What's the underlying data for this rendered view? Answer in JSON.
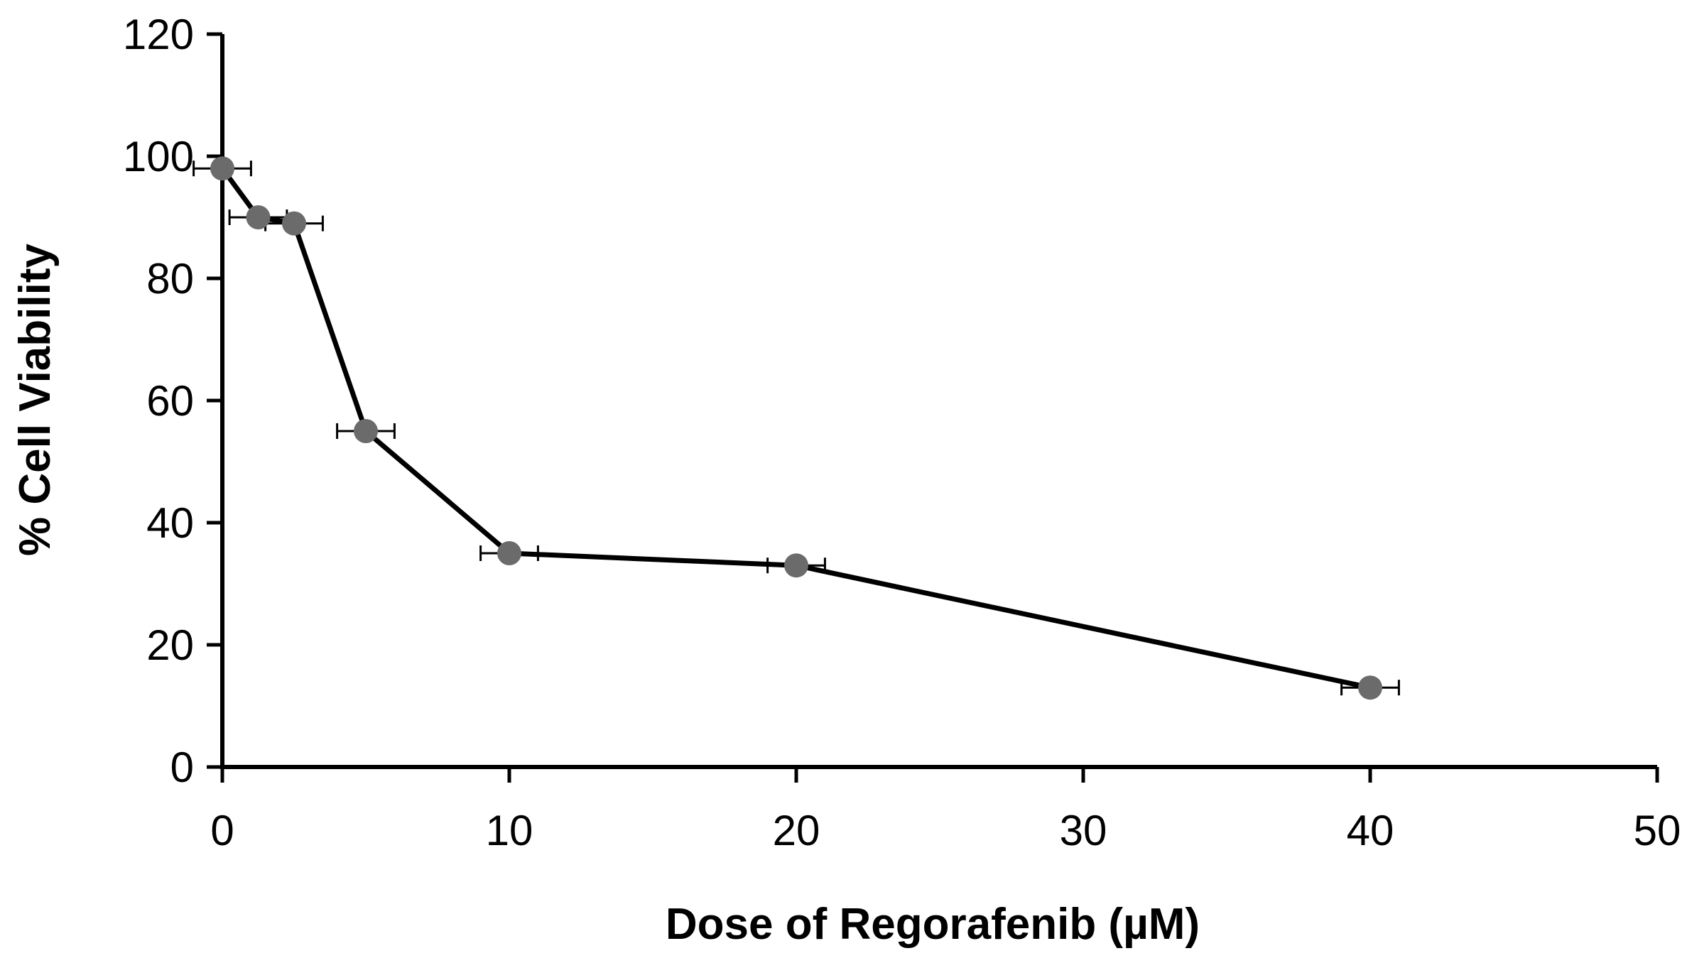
{
  "chart_data": {
    "type": "line",
    "title": "",
    "xlabel": "Dose of Regorafenib (µM)",
    "ylabel": "% Cell Viability",
    "xlim": [
      0,
      50
    ],
    "ylim": [
      0,
      120
    ],
    "x_ticks": [
      0,
      10,
      20,
      30,
      40,
      50
    ],
    "y_ticks": [
      0,
      20,
      40,
      60,
      80,
      100,
      120
    ],
    "grid": false,
    "legend": "none",
    "colors": {
      "line": "#000000",
      "marker": "#6b6b6b",
      "axis": "#000000"
    },
    "series": [
      {
        "x": [
          0,
          1.25,
          2.5,
          5,
          10,
          20,
          40
        ],
        "y": [
          98,
          90,
          89,
          55,
          35,
          33,
          13
        ],
        "x_error": [
          1,
          1,
          1,
          1,
          1,
          1,
          1
        ]
      }
    ]
  }
}
